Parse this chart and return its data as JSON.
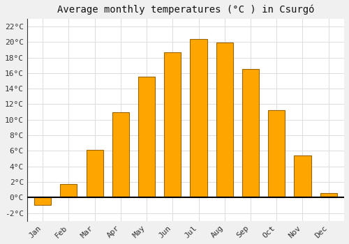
{
  "title": "Average monthly temperatures (°C ) in Csurgó",
  "months": [
    "Jan",
    "Feb",
    "Mar",
    "Apr",
    "May",
    "Jun",
    "Jul",
    "Aug",
    "Sep",
    "Oct",
    "Nov",
    "Dec"
  ],
  "values": [
    -1.0,
    1.7,
    6.1,
    11.0,
    15.5,
    18.7,
    20.4,
    19.9,
    16.5,
    11.2,
    5.4,
    0.6
  ],
  "bar_color": "#FFA500",
  "bar_edge_color": "#996600",
  "ylim": [
    -3,
    23
  ],
  "yticks": [
    -2,
    0,
    2,
    4,
    6,
    8,
    10,
    12,
    14,
    16,
    18,
    20,
    22
  ],
  "ytick_labels": [
    "-2°C",
    "0°C",
    "2°C",
    "4°C",
    "6°C",
    "8°C",
    "10°C",
    "12°C",
    "14°C",
    "16°C",
    "18°C",
    "20°C",
    "22°C"
  ],
  "background_color": "#ffffff",
  "outer_background": "#f0f0f0",
  "grid_color": "#dddddd",
  "title_fontsize": 10,
  "tick_fontsize": 8,
  "zero_line_color": "#000000",
  "bar_width": 0.65
}
